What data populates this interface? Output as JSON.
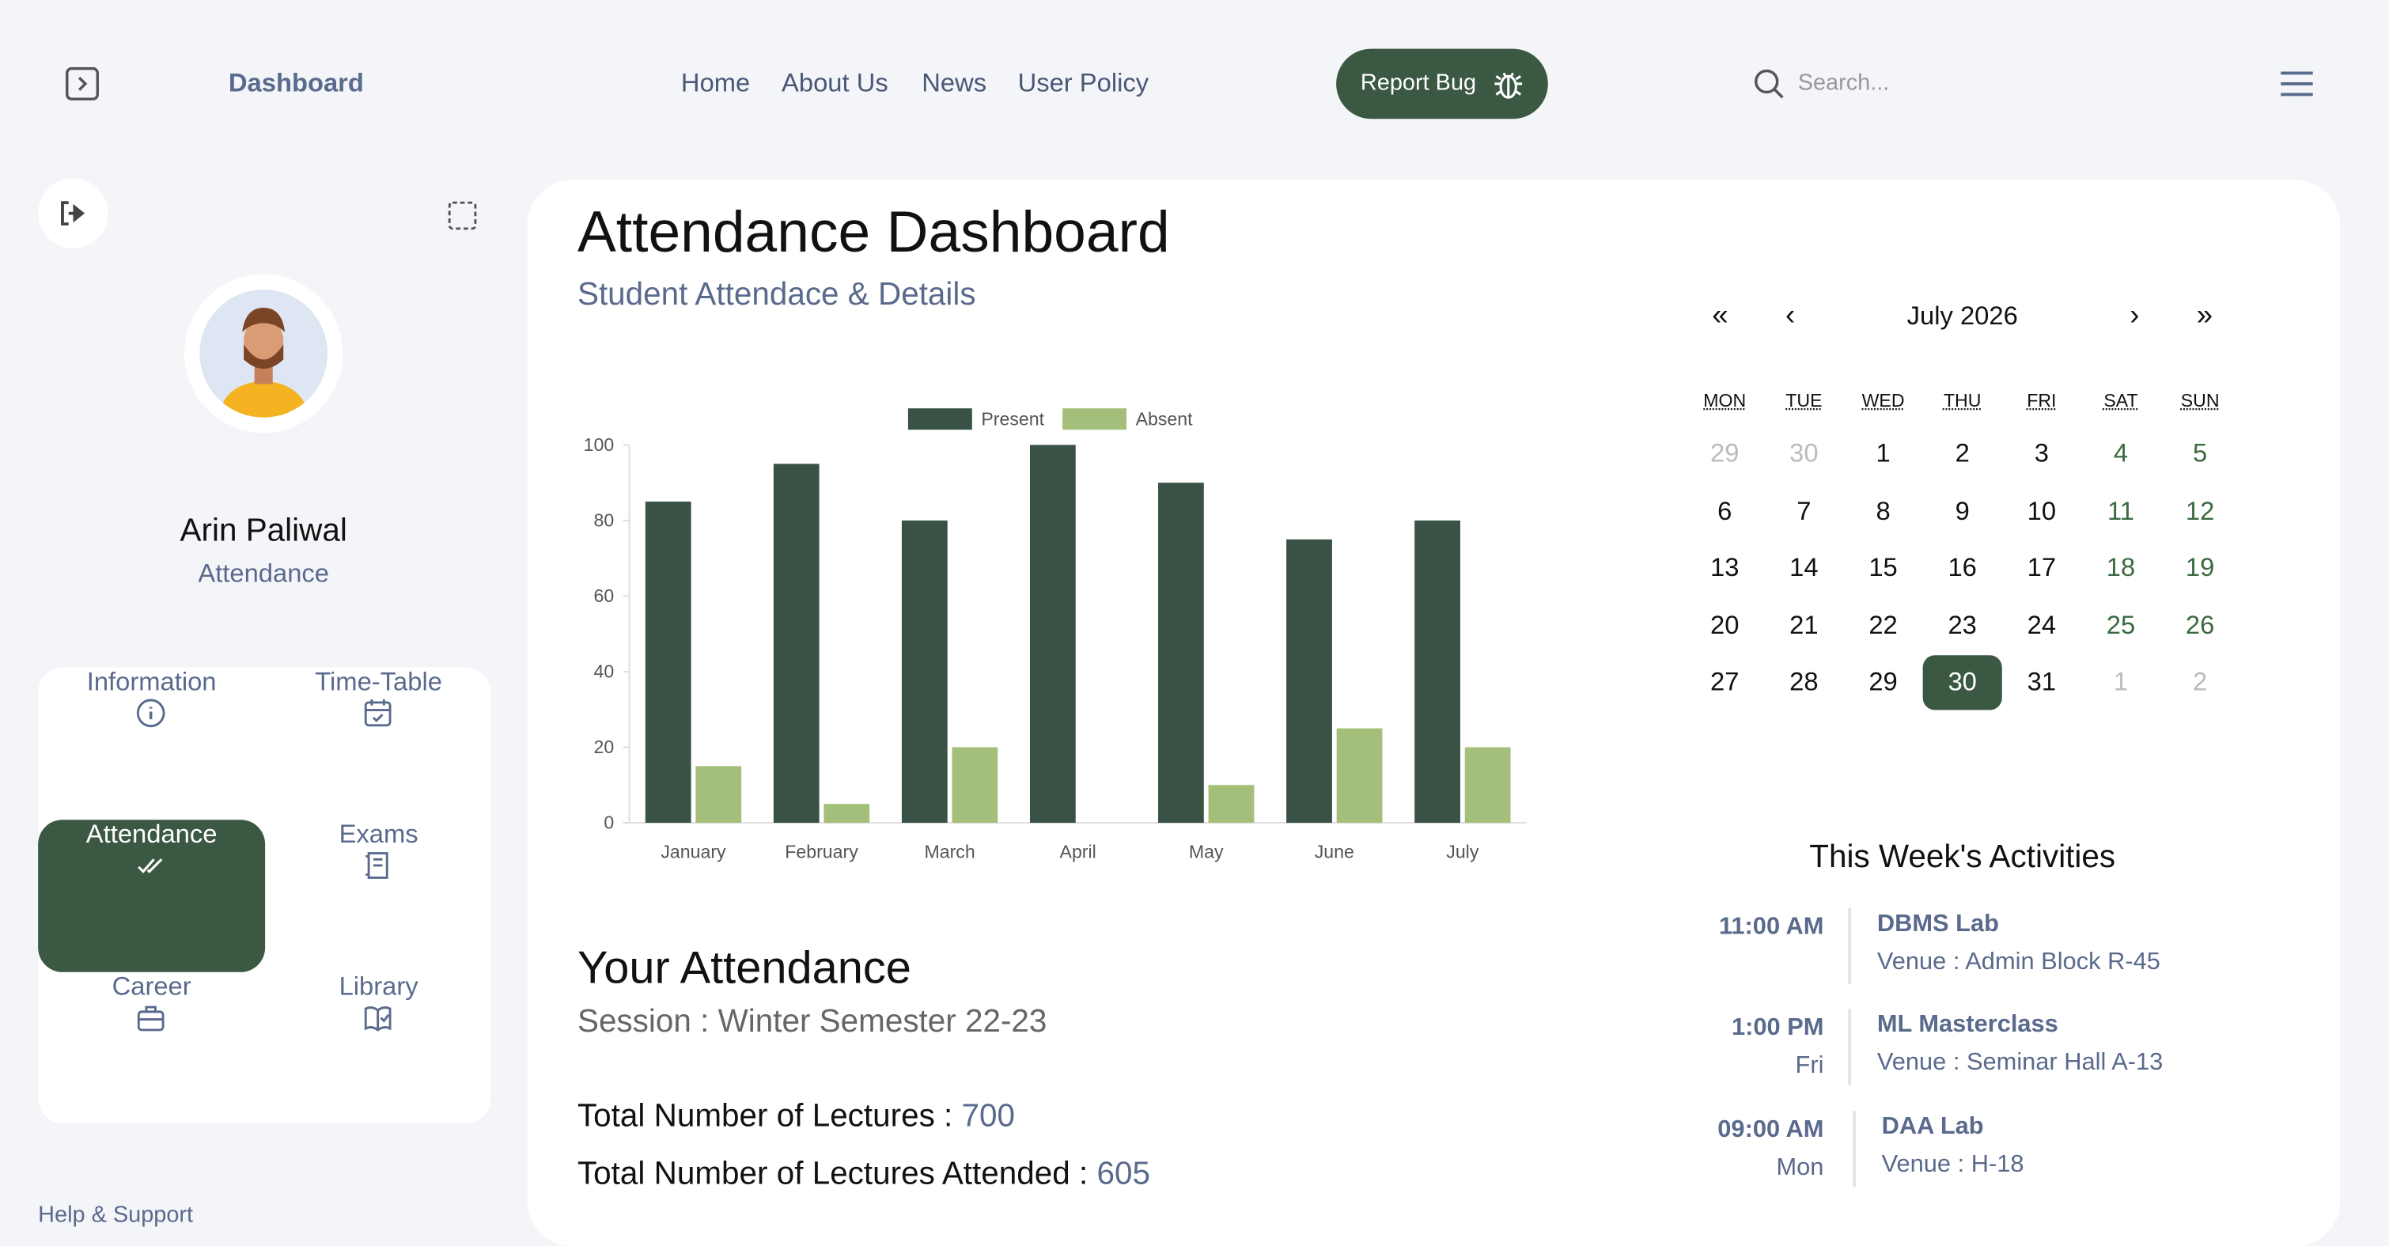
{
  "header": {
    "brand": "Dashboard",
    "nav": [
      "Home",
      "About Us",
      "News",
      "User Policy"
    ],
    "report_button": "Report Bug",
    "search_placeholder": "Search..."
  },
  "sidebar": {
    "name": "Arin Paliwal",
    "role": "Attendance",
    "menu": [
      "Information",
      "Time-Table",
      "Attendance",
      "Exams",
      "Career",
      "Library"
    ],
    "help": "Help & Support"
  },
  "main": {
    "title": "Attendance Dashboard",
    "subtitle": "Student Attendace & Details",
    "section_title": "Your Attendance",
    "session": "Session : Winter Semester 22-23",
    "stats": [
      {
        "label": "Total Number of Lectures :",
        "value": "700"
      },
      {
        "label": "Total Number of Lectures Attended :",
        "value": "605"
      }
    ]
  },
  "chart_data": {
    "type": "bar",
    "categories": [
      "January",
      "February",
      "March",
      "April",
      "May",
      "June",
      "July"
    ],
    "series": [
      {
        "name": "Present",
        "color": "#3a5245",
        "values": [
          85,
          95,
          80,
          100,
          90,
          75,
          80
        ]
      },
      {
        "name": "Absent",
        "color": "#a3bf7a",
        "values": [
          15,
          5,
          20,
          0,
          10,
          25,
          20
        ]
      }
    ],
    "ylim": [
      0,
      100
    ],
    "yticks": [
      0,
      20,
      40,
      60,
      80,
      100
    ],
    "grid": false,
    "legend": "top"
  },
  "calendar": {
    "nav": [
      "«",
      "‹",
      "›",
      "»"
    ],
    "month": "July 2026",
    "weekdays": [
      "MON",
      "TUE",
      "WED",
      "THU",
      "FRI",
      "SAT",
      "SUN"
    ],
    "rows": [
      [
        "29",
        "30",
        "1",
        "2",
        "3",
        "4",
        "5"
      ],
      [
        "6",
        "7",
        "8",
        "9",
        "10",
        "11",
        "12"
      ],
      [
        "13",
        "14",
        "15",
        "16",
        "17",
        "18",
        "19"
      ],
      [
        "20",
        "21",
        "22",
        "23",
        "24",
        "25",
        "26"
      ],
      [
        "27",
        "28",
        "29",
        "30",
        "31",
        "1",
        "2"
      ]
    ]
  },
  "activities": {
    "title": "This Week's Activities",
    "items": [
      {
        "time": "11:00 AM",
        "title": "DBMS Lab",
        "venue": "Venue : Admin Block R-45"
      },
      {
        "time": "1:00 PM",
        "day": "Fri",
        "title": "ML Masterclass",
        "venue": "Venue : Seminar Hall A-13"
      },
      {
        "time": "09:00 AM",
        "day": "Mon",
        "title": "DAA Lab",
        "venue": "Venue : H-18"
      }
    ]
  }
}
